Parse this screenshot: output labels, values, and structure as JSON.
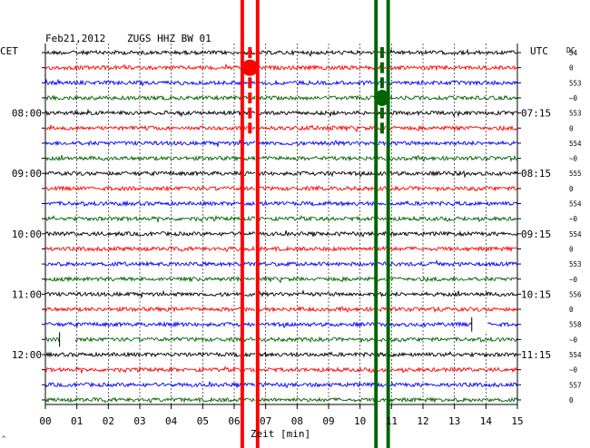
{
  "header": {
    "date": "Feb21,2012",
    "station": "ZUGS HHZ BW 01",
    "left_tz": "CET",
    "right_tz": "UTC",
    "dc_label": "DC"
  },
  "xaxis": {
    "label": "Zeit [min]",
    "ticks": [
      "00",
      "01",
      "02",
      "03",
      "04",
      "05",
      "06",
      "07",
      "08",
      "09",
      "10",
      "11",
      "12",
      "13",
      "14",
      "15"
    ]
  },
  "colors": {
    "black": "#000000",
    "red": "#ff0000",
    "blue": "#0000ff",
    "green": "#006400",
    "event_red": "#ff0000",
    "event_green": "#006400"
  },
  "chart_data": {
    "type": "line",
    "title": "Feb21,2012 ZUGS HHZ BW 01",
    "xlabel": "Zeit [min]",
    "xlim": [
      0,
      15
    ],
    "trace_minutes": 15,
    "trace_count": 24,
    "trace_colors": [
      "black",
      "red",
      "blue",
      "green"
    ],
    "left_time_labels": [
      {
        "trace": 4,
        "label": "08:00"
      },
      {
        "trace": 8,
        "label": "09:00"
      },
      {
        "trace": 12,
        "label": "10:00"
      },
      {
        "trace": 16,
        "label": "11:00"
      },
      {
        "trace": 20,
        "label": "12:00"
      }
    ],
    "right_time_labels": [
      {
        "trace": 4,
        "label": "07:15"
      },
      {
        "trace": 8,
        "label": "08:15"
      },
      {
        "trace": 12,
        "label": "09:15"
      },
      {
        "trace": 16,
        "label": "10:15"
      },
      {
        "trace": 20,
        "label": "11:15"
      }
    ],
    "dc_values": [
      "54",
      "0",
      "553",
      "~0",
      "553",
      "0",
      "554",
      "~0",
      "555",
      "0",
      "554",
      "~0",
      "554",
      "0",
      "553",
      "~0",
      "556",
      "0",
      "558",
      "~0",
      "554",
      "~0",
      "557",
      "0"
    ],
    "events": [
      {
        "color": "event_red",
        "minute_start": 6.2,
        "minute_end": 6.8
      },
      {
        "color": "event_green",
        "minute_start": 10.45,
        "minute_end": 10.95
      }
    ],
    "gaps": [
      {
        "trace": 19,
        "minute_start": 0.45,
        "minute_end": 0.95
      },
      {
        "trace": 18,
        "minute_start": 13.55,
        "minute_end": 14.05
      }
    ]
  }
}
